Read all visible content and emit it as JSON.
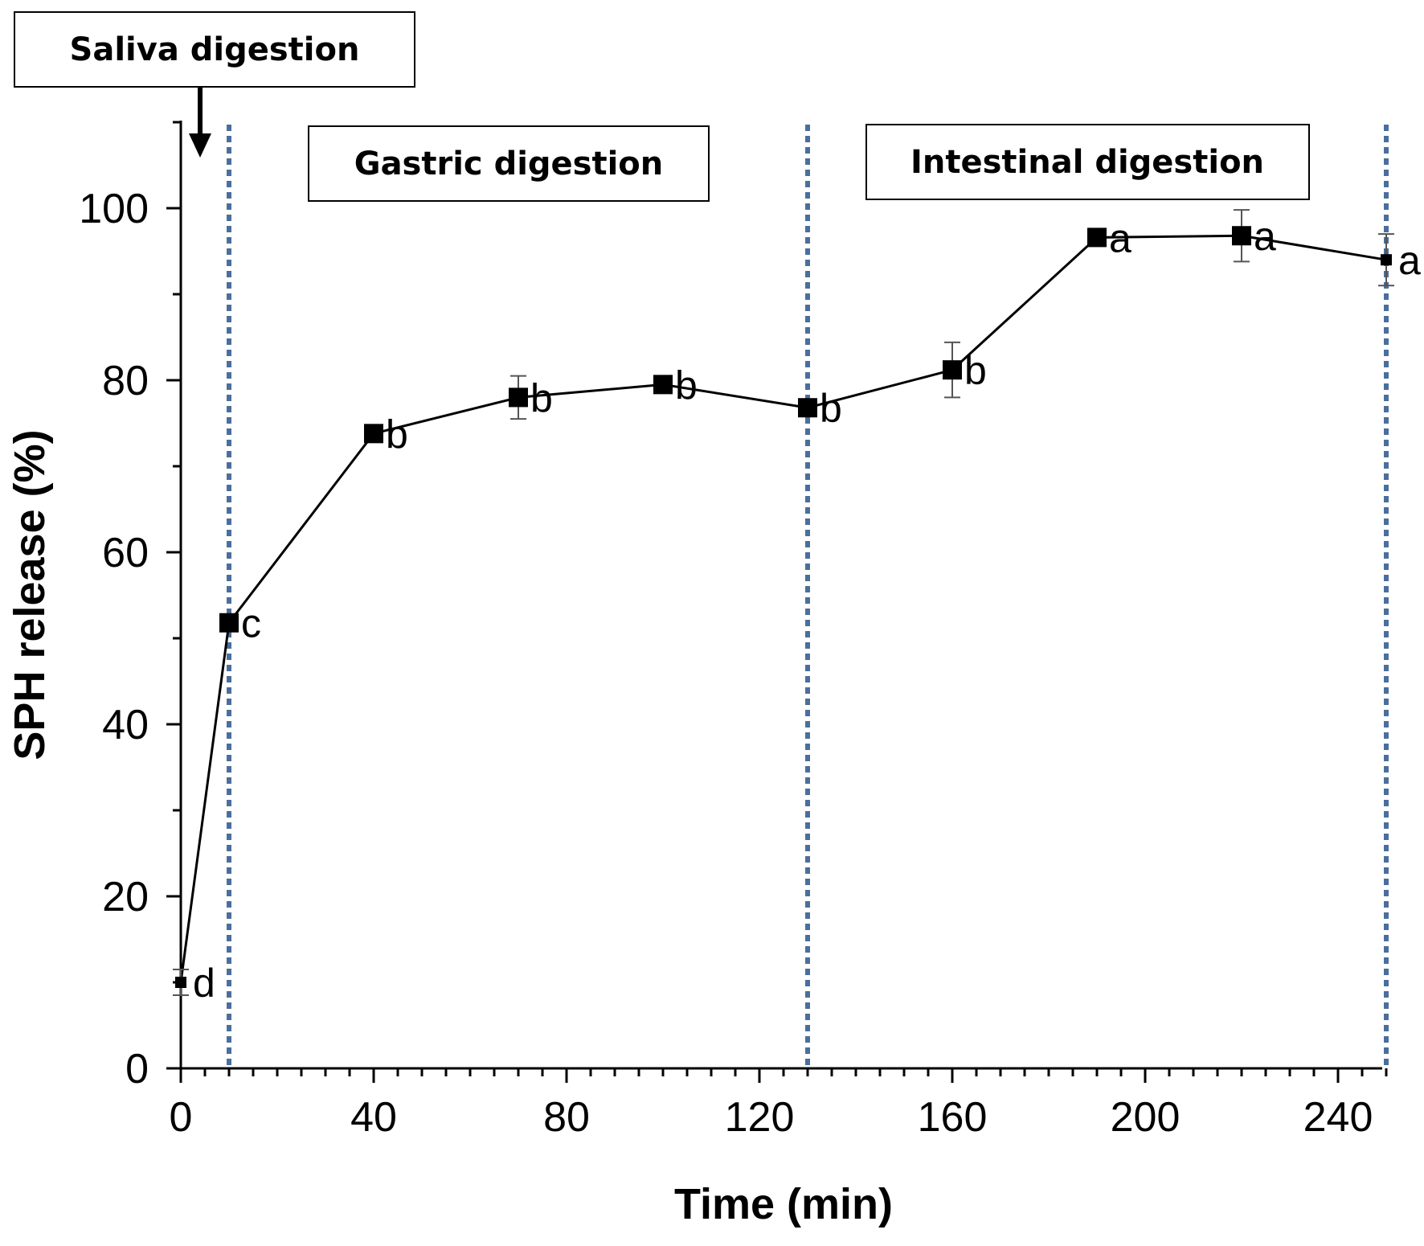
{
  "chart_data": {
    "type": "line",
    "title": "",
    "xlabel": "Time (min)",
    "ylabel": "SPH release (%)",
    "xlim": [
      0,
      250
    ],
    "ylim": [
      0,
      110
    ],
    "xticks": [
      0,
      40,
      80,
      120,
      160,
      200,
      240
    ],
    "yticks": [
      0,
      20,
      40,
      60,
      80,
      100
    ],
    "x_minor_step": 5,
    "y_minor_step": 10,
    "grid": false,
    "series": [
      {
        "marker": "square",
        "color": "#000000",
        "points": [
          {
            "x": 0,
            "y": 10.0,
            "err": 1.5,
            "label": "d"
          },
          {
            "x": 10,
            "y": 51.8,
            "err": 0.8,
            "label": "c"
          },
          {
            "x": 40,
            "y": 73.8,
            "err": 0.8,
            "label": "b"
          },
          {
            "x": 70,
            "y": 78.0,
            "err": 2.5,
            "label": "b"
          },
          {
            "x": 100,
            "y": 79.5,
            "err": 0.8,
            "label": "b"
          },
          {
            "x": 130,
            "y": 76.8,
            "err": 0.8,
            "label": "b"
          },
          {
            "x": 160,
            "y": 81.2,
            "err": 3.2,
            "label": "b"
          },
          {
            "x": 190,
            "y": 96.6,
            "err": 0.5,
            "label": "a"
          },
          {
            "x": 220,
            "y": 96.8,
            "err": 3.0,
            "label": "a"
          },
          {
            "x": 250,
            "y": 94.0,
            "err": 3.0,
            "label": "a"
          }
        ]
      }
    ],
    "phase_lines": [
      10,
      130,
      250
    ],
    "phase_line_color": "#4a6f9c",
    "annotations": [
      {
        "key": "saliva",
        "text": "Saliva digestion"
      },
      {
        "key": "gastric",
        "text": "Gastric digestion"
      },
      {
        "key": "intestinal",
        "text": "Intestinal digestion"
      }
    ]
  }
}
